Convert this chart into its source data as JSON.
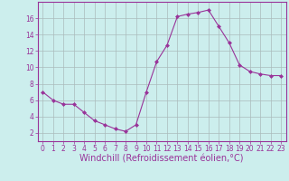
{
  "x": [
    0,
    1,
    2,
    3,
    4,
    5,
    6,
    7,
    8,
    9,
    10,
    11,
    12,
    13,
    14,
    15,
    16,
    17,
    18,
    19,
    20,
    21,
    22,
    23
  ],
  "y": [
    7.0,
    6.0,
    5.5,
    5.5,
    4.5,
    3.5,
    3.0,
    2.5,
    2.2,
    3.0,
    7.0,
    10.7,
    12.7,
    16.2,
    16.5,
    16.7,
    17.0,
    15.0,
    13.0,
    10.3,
    9.5,
    9.2,
    9.0,
    9.0
  ],
  "line_color": "#993399",
  "marker": "D",
  "marker_size": 2.0,
  "bg_color": "#cceeed",
  "grid_color": "#aabbbb",
  "xlabel": "Windchill (Refroidissement éolien,°C)",
  "ylim": [
    1,
    18
  ],
  "xlim": [
    -0.5,
    23.5
  ],
  "yticks": [
    2,
    4,
    6,
    8,
    10,
    12,
    14,
    16
  ],
  "xticks": [
    0,
    1,
    2,
    3,
    4,
    5,
    6,
    7,
    8,
    9,
    10,
    11,
    12,
    13,
    14,
    15,
    16,
    17,
    18,
    19,
    20,
    21,
    22,
    23
  ],
  "tick_color": "#993399",
  "label_color": "#993399",
  "tick_fontsize": 5.5,
  "xlabel_fontsize": 7.0,
  "linewidth": 0.8
}
